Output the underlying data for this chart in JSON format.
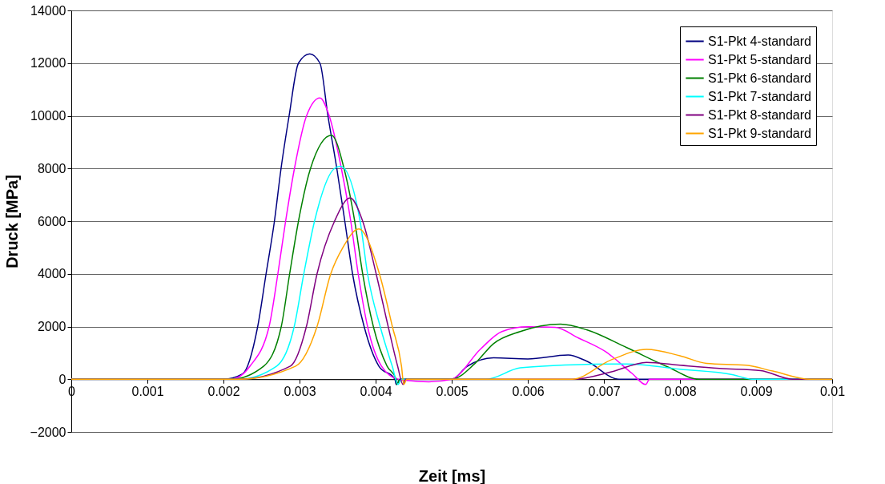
{
  "chart_data": {
    "type": "line",
    "xlabel": "Zeit [ms]",
    "ylabel": "Druck [MPa]",
    "xlim": [
      0,
      0.01
    ],
    "ylim": [
      -2000,
      14000
    ],
    "xticks": [
      0,
      0.001,
      0.002,
      0.003,
      0.004,
      0.005,
      0.006,
      0.007,
      0.008,
      0.009,
      0.01
    ],
    "yticks": [
      -2000,
      0,
      2000,
      4000,
      6000,
      8000,
      10000,
      12000,
      14000
    ],
    "grid": "y",
    "legend": "top right",
    "marker": "none",
    "line_style": "solid",
    "series": [
      {
        "name": "S1-Pkt 4-standard",
        "color": "#000080",
        "x": [
          0,
          0.002,
          0.00225,
          0.00245,
          0.00256,
          0.00267,
          0.002757,
          0.002863,
          0.002986,
          0.003134,
          0.003268,
          0.003373,
          0.00349,
          0.003595,
          0.003697,
          0.003849,
          0.004042,
          0.004254,
          0.00427,
          0.004324,
          0.005,
          0.0052,
          0.00555,
          0.006,
          0.00653,
          0.00677,
          0.0072,
          0.01
        ],
        "values": [
          0,
          0,
          200,
          2000,
          4000,
          6000,
          8000,
          10000,
          12000,
          12350,
          12000,
          10000,
          8000,
          6000,
          4000,
          2000,
          500,
          0,
          -200,
          0,
          0,
          480,
          810,
          770,
          920,
          690,
          0,
          0
        ]
      },
      {
        "name": "S1-Pkt 5-standard",
        "color": "#ff00ff",
        "x": [
          0,
          0.0021,
          0.00235,
          0.0026,
          0.002715,
          0.002817,
          0.002933,
          0.003092,
          0.003268,
          0.00339,
          0.00355,
          0.003673,
          0.003771,
          0.003894,
          0.004077,
          0.0043,
          0.0047,
          0.005,
          0.00538,
          0.00566,
          0.006,
          0.00636,
          0.00667,
          0.00702,
          0.00737,
          0.00755,
          0.0076,
          0.01
        ],
        "values": [
          0,
          0,
          500,
          2000,
          4000,
          6000,
          8000,
          10000,
          10680,
          10000,
          8000,
          6000,
          4000,
          2000,
          500,
          0,
          -100,
          0,
          1150,
          1810,
          1990,
          1970,
          1560,
          1050,
          220,
          -200,
          0,
          0
        ]
      },
      {
        "name": "S1-Pkt 6-standard",
        "color": "#008000",
        "x": [
          0,
          0.0021,
          0.00253,
          0.00276,
          0.00287,
          0.002986,
          0.003144,
          0.00342,
          0.003585,
          0.003725,
          0.00383,
          0.00397,
          0.00415,
          0.00427,
          0.00428,
          0.00432,
          0.005,
          0.0053,
          0.00555,
          0.0059,
          0.00643,
          0.00678,
          0.0073,
          0.00783,
          0.00825,
          0.01
        ],
        "values": [
          0,
          0,
          500,
          2000,
          4000,
          6000,
          8000,
          9260,
          8000,
          6000,
          4000,
          2000,
          500,
          0,
          -200,
          0,
          0,
          580,
          1350,
          1810,
          2090,
          1870,
          1200,
          480,
          0,
          0
        ]
      },
      {
        "name": "S1-Pkt 7-standard",
        "color": "#00ffff",
        "x": [
          0,
          0.0022,
          0.0027,
          0.00293,
          0.003056,
          0.003197,
          0.00346,
          0.003539,
          0.003796,
          0.003894,
          0.00406,
          0.004218,
          0.004296,
          0.00434,
          0.00545,
          0.0059,
          0.0066,
          0.0073,
          0.008,
          0.0087,
          0.00895,
          0.01
        ],
        "values": [
          0,
          0,
          500,
          2000,
          4000,
          6000,
          8000,
          8080,
          6000,
          4000,
          2000,
          500,
          -200,
          0,
          0,
          430,
          550,
          580,
          380,
          170,
          0,
          0
        ]
      },
      {
        "name": "S1-Pkt 8-standard",
        "color": "#800080",
        "x": [
          0,
          0.0022,
          0.00288,
          0.00309,
          0.00323,
          0.00346,
          0.003665,
          0.00383,
          0.004007,
          0.004165,
          0.004289,
          0.00436,
          0.004394,
          0.0066,
          0.0071,
          0.00756,
          0.008,
          0.00852,
          0.00906,
          0.00948,
          0.01
        ],
        "values": [
          0,
          0,
          500,
          2000,
          4000,
          6000,
          6880,
          6000,
          4000,
          2000,
          500,
          -200,
          0,
          0,
          280,
          640,
          530,
          410,
          330,
          0,
          0
        ]
      },
      {
        "name": "S1-Pkt 9-standard",
        "color": "#ffa500",
        "x": [
          0,
          0.0022,
          0.00295,
          0.00323,
          0.00341,
          0.00357,
          0.003778,
          0.00405,
          0.00422,
          0.00434,
          0.00437,
          0.00441,
          0.00658,
          0.0071,
          0.00756,
          0.008,
          0.00835,
          0.00887,
          0.00922,
          0.00971,
          0.01
        ],
        "values": [
          0,
          0,
          500,
          2000,
          4000,
          5000,
          5700,
          4000,
          2000,
          500,
          -200,
          0,
          0,
          740,
          1130,
          890,
          600,
          530,
          310,
          0,
          0
        ]
      }
    ]
  }
}
